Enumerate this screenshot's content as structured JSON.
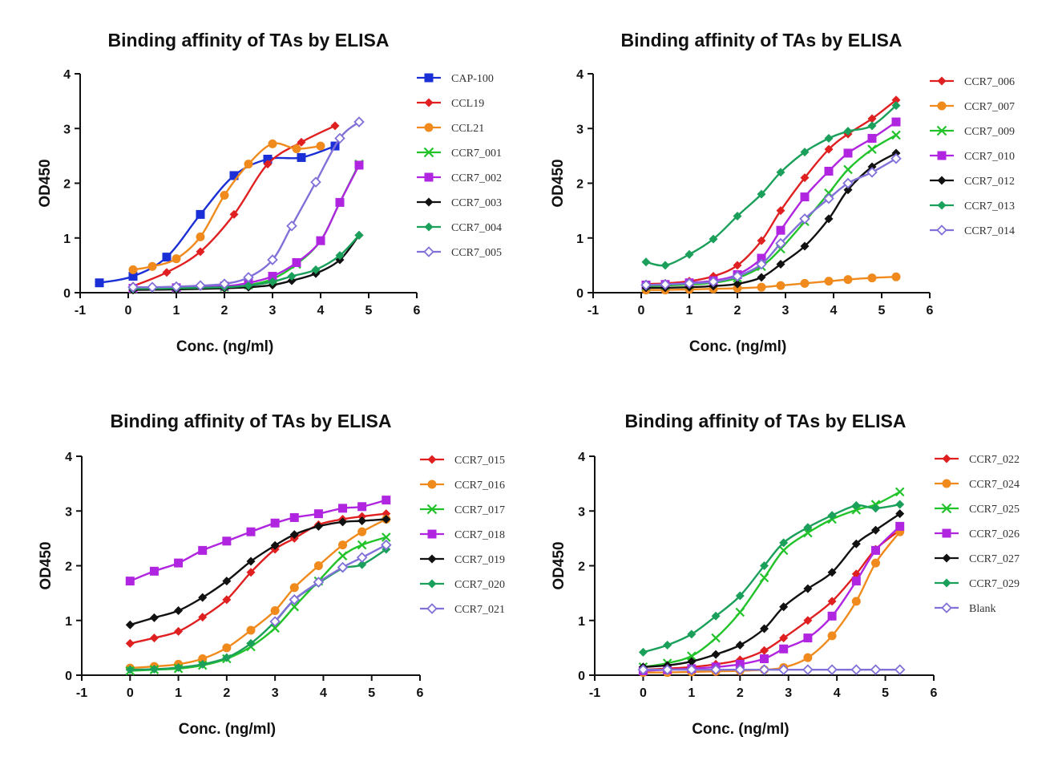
{
  "chart_data": [
    {
      "type": "line",
      "title": "Binding affinity of TAs by ELISA",
      "xlabel": "Conc. (ng/ml)",
      "ylabel": "OD450",
      "xlim": [
        -1,
        6
      ],
      "ylim": [
        0,
        4
      ],
      "xticks": [
        "-1",
        "0",
        "1",
        "2",
        "3",
        "4",
        "5",
        "6"
      ],
      "yticks": [
        "0",
        "1",
        "2",
        "3",
        "4"
      ],
      "legend_position": "right",
      "series": [
        {
          "name": "CAP-100",
          "color": "#1a2fd6",
          "marker": "square",
          "x": [
            -0.6,
            0.1,
            0.8,
            1.5,
            2.2,
            2.9,
            3.6,
            4.3
          ],
          "y": [
            0.18,
            0.3,
            0.65,
            1.43,
            2.14,
            2.44,
            2.47,
            2.68
          ]
        },
        {
          "name": "CCL19",
          "color": "#e02020",
          "marker": "diamond",
          "x": [
            0.1,
            0.8,
            1.5,
            2.2,
            2.9,
            3.6,
            4.3
          ],
          "y": [
            0.12,
            0.37,
            0.75,
            1.43,
            2.35,
            2.75,
            3.05
          ]
        },
        {
          "name": "CCL21",
          "color": "#f08a1c",
          "marker": "circle",
          "x": [
            0.1,
            0.5,
            1.0,
            1.5,
            2.0,
            2.5,
            3.0,
            3.5,
            4.0
          ],
          "y": [
            0.42,
            0.48,
            0.62,
            1.02,
            1.78,
            2.35,
            2.72,
            2.63,
            2.68
          ]
        },
        {
          "name": "CCR7_001",
          "color": "#22c32a",
          "marker": "x",
          "x": [
            0.1,
            1.0,
            2.0,
            2.5,
            3.0,
            3.5,
            4.0,
            4.4,
            4.8
          ],
          "y": [
            0.07,
            0.08,
            0.1,
            0.14,
            0.25,
            0.52,
            0.95,
            1.65,
            2.35
          ]
        },
        {
          "name": "CCR7_002",
          "color": "#b026e0",
          "marker": "square",
          "x": [
            0.1,
            1.0,
            2.0,
            2.5,
            3.0,
            3.5,
            4.0,
            4.4,
            4.8
          ],
          "y": [
            0.08,
            0.09,
            0.12,
            0.18,
            0.3,
            0.55,
            0.95,
            1.65,
            2.33
          ]
        },
        {
          "name": "CCR7_003",
          "color": "#111111",
          "marker": "diamond",
          "x": [
            0.1,
            1.0,
            2.0,
            2.5,
            3.0,
            3.4,
            3.9,
            4.4,
            4.8
          ],
          "y": [
            0.05,
            0.06,
            0.08,
            0.1,
            0.14,
            0.22,
            0.35,
            0.6,
            1.05
          ]
        },
        {
          "name": "CCR7_004",
          "color": "#1aa05a",
          "marker": "diamond",
          "x": [
            0.1,
            1.0,
            2.0,
            2.5,
            3.0,
            3.4,
            3.9,
            4.4,
            4.8
          ],
          "y": [
            0.07,
            0.08,
            0.1,
            0.13,
            0.2,
            0.3,
            0.42,
            0.68,
            1.05
          ]
        },
        {
          "name": "CCR7_005",
          "color": "#8070d8",
          "marker": "diamond-open",
          "x": [
            0.1,
            0.5,
            1.0,
            1.5,
            2.0,
            2.5,
            3.0,
            3.4,
            3.9,
            4.4,
            4.8
          ],
          "y": [
            0.1,
            0.1,
            0.11,
            0.13,
            0.16,
            0.28,
            0.6,
            1.22,
            2.02,
            2.82,
            3.12
          ]
        }
      ]
    },
    {
      "type": "line",
      "title": "Binding affinity of TAs by ELISA",
      "xlabel": "Conc. (ng/ml)",
      "ylabel": "OD450",
      "xlim": [
        -1,
        6
      ],
      "ylim": [
        0,
        4
      ],
      "xticks": [
        "-1",
        "0",
        "1",
        "2",
        "3",
        "4",
        "5",
        "6"
      ],
      "yticks": [
        "0",
        "1",
        "2",
        "3",
        "4"
      ],
      "legend_position": "right",
      "series": [
        {
          "name": "CCR7_006",
          "color": "#e02020",
          "marker": "diamond",
          "x": [
            0.1,
            0.5,
            1.0,
            1.5,
            2.0,
            2.5,
            2.9,
            3.4,
            3.9,
            4.3,
            4.8,
            5.3
          ],
          "y": [
            0.16,
            0.17,
            0.21,
            0.3,
            0.5,
            0.95,
            1.5,
            2.1,
            2.62,
            2.9,
            3.18,
            3.52
          ]
        },
        {
          "name": "CCR7_007",
          "color": "#f08a1c",
          "marker": "circle",
          "x": [
            0.1,
            0.5,
            1.0,
            1.5,
            2.0,
            2.5,
            2.9,
            3.4,
            3.9,
            4.3,
            4.8,
            5.3
          ],
          "y": [
            0.05,
            0.05,
            0.06,
            0.07,
            0.08,
            0.1,
            0.13,
            0.17,
            0.21,
            0.24,
            0.27,
            0.29
          ]
        },
        {
          "name": "CCR7_009",
          "color": "#22c32a",
          "marker": "x",
          "x": [
            0.1,
            0.5,
            1.0,
            1.5,
            2.0,
            2.5,
            2.9,
            3.4,
            3.9,
            4.3,
            4.8,
            5.3
          ],
          "y": [
            0.12,
            0.13,
            0.15,
            0.18,
            0.27,
            0.48,
            0.8,
            1.3,
            1.82,
            2.25,
            2.62,
            2.88
          ]
        },
        {
          "name": "CCR7_010",
          "color": "#b026e0",
          "marker": "square",
          "x": [
            0.1,
            0.5,
            1.0,
            1.5,
            2.0,
            2.5,
            2.9,
            3.4,
            3.9,
            4.3,
            4.8,
            5.3
          ],
          "y": [
            0.14,
            0.15,
            0.18,
            0.22,
            0.33,
            0.63,
            1.14,
            1.75,
            2.22,
            2.55,
            2.82,
            3.12
          ]
        },
        {
          "name": "CCR7_012",
          "color": "#111111",
          "marker": "diamond",
          "x": [
            0.1,
            0.5,
            1.0,
            1.5,
            2.0,
            2.5,
            2.9,
            3.4,
            3.9,
            4.3,
            4.8,
            5.3
          ],
          "y": [
            0.09,
            0.09,
            0.1,
            0.12,
            0.16,
            0.28,
            0.52,
            0.85,
            1.35,
            1.88,
            2.3,
            2.55
          ]
        },
        {
          "name": "CCR7_013",
          "color": "#1aa05a",
          "marker": "diamond",
          "x": [
            0.1,
            0.5,
            1.0,
            1.5,
            2.0,
            2.5,
            2.9,
            3.4,
            3.9,
            4.3,
            4.8,
            5.3
          ],
          "y": [
            0.56,
            0.5,
            0.7,
            0.98,
            1.4,
            1.8,
            2.2,
            2.57,
            2.82,
            2.95,
            3.05,
            3.42
          ]
        },
        {
          "name": "CCR7_014",
          "color": "#8070d8",
          "marker": "diamond-open",
          "x": [
            0.1,
            0.5,
            1.0,
            1.5,
            2.0,
            2.5,
            2.9,
            3.4,
            3.9,
            4.3,
            4.8,
            5.3
          ],
          "y": [
            0.14,
            0.15,
            0.17,
            0.2,
            0.3,
            0.52,
            0.9,
            1.35,
            1.72,
            2.0,
            2.2,
            2.45
          ]
        }
      ]
    },
    {
      "type": "line",
      "title": "Binding affinity of TAs by ELISA",
      "xlabel": "Conc. (ng/ml)",
      "ylabel": "OD450",
      "xlim": [
        -1,
        6
      ],
      "ylim": [
        0,
        4
      ],
      "xticks": [
        "-1",
        "0",
        "1",
        "2",
        "3",
        "4",
        "5",
        "6"
      ],
      "yticks": [
        "0",
        "1",
        "2",
        "3",
        "4"
      ],
      "legend_position": "right",
      "series": [
        {
          "name": "CCR7_015",
          "color": "#e02020",
          "marker": "diamond",
          "x": [
            0.0,
            0.5,
            1.0,
            1.5,
            2.0,
            2.5,
            3.0,
            3.4,
            3.9,
            4.4,
            4.8,
            5.3
          ],
          "y": [
            0.58,
            0.68,
            0.8,
            1.06,
            1.38,
            1.88,
            2.3,
            2.5,
            2.75,
            2.85,
            2.9,
            2.95
          ]
        },
        {
          "name": "CCR7_016",
          "color": "#f08a1c",
          "marker": "circle",
          "x": [
            0.0,
            0.5,
            1.0,
            1.5,
            2.0,
            2.5,
            3.0,
            3.4,
            3.9,
            4.4,
            4.8,
            5.3
          ],
          "y": [
            0.13,
            0.16,
            0.2,
            0.3,
            0.5,
            0.82,
            1.18,
            1.6,
            2.0,
            2.38,
            2.62,
            2.85
          ]
        },
        {
          "name": "CCR7_017",
          "color": "#22c32a",
          "marker": "x",
          "x": [
            0.0,
            0.5,
            1.0,
            1.5,
            2.0,
            2.5,
            3.0,
            3.4,
            3.9,
            4.4,
            4.8,
            5.3
          ],
          "y": [
            0.08,
            0.1,
            0.12,
            0.18,
            0.3,
            0.52,
            0.86,
            1.25,
            1.72,
            2.18,
            2.38,
            2.52
          ]
        },
        {
          "name": "CCR7_018",
          "color": "#b026e0",
          "marker": "square",
          "x": [
            0.0,
            0.5,
            1.0,
            1.5,
            2.0,
            2.5,
            3.0,
            3.4,
            3.9,
            4.4,
            4.8,
            5.3
          ],
          "y": [
            1.72,
            1.9,
            2.05,
            2.28,
            2.45,
            2.62,
            2.78,
            2.88,
            2.95,
            3.05,
            3.08,
            3.2
          ]
        },
        {
          "name": "CCR7_019",
          "color": "#111111",
          "marker": "diamond",
          "x": [
            0.0,
            0.5,
            1.0,
            1.5,
            2.0,
            2.5,
            3.0,
            3.4,
            3.9,
            4.4,
            4.8,
            5.3
          ],
          "y": [
            0.92,
            1.05,
            1.18,
            1.42,
            1.72,
            2.08,
            2.37,
            2.57,
            2.72,
            2.8,
            2.82,
            2.85
          ]
        },
        {
          "name": "CCR7_020",
          "color": "#1aa05a",
          "marker": "diamond",
          "x": [
            0.0,
            0.5,
            1.0,
            1.5,
            2.0,
            2.5,
            3.0,
            3.4,
            3.9,
            4.4,
            4.8,
            5.3
          ],
          "y": [
            0.1,
            0.11,
            0.14,
            0.2,
            0.32,
            0.58,
            0.98,
            1.38,
            1.68,
            1.95,
            2.02,
            2.3
          ]
        },
        {
          "name": "CCR7_021",
          "color": "#8070d8",
          "marker": "diamond-open",
          "x": [
            3.0,
            3.4,
            3.9,
            4.4,
            4.8,
            5.3
          ],
          "y": [
            0.98,
            1.38,
            1.7,
            1.97,
            2.15,
            2.38
          ]
        }
      ]
    },
    {
      "type": "line",
      "title": "Binding affinity of TAs by ELISA",
      "xlabel": "Conc. (ng/ml)",
      "ylabel": "OD450",
      "xlim": [
        -1,
        6
      ],
      "ylim": [
        0,
        4
      ],
      "xticks": [
        "-1",
        "0",
        "1",
        "2",
        "3",
        "4",
        "5",
        "6"
      ],
      "yticks": [
        "0",
        "1",
        "2",
        "3",
        "4"
      ],
      "legend_position": "right",
      "series": [
        {
          "name": "CCR7_022",
          "color": "#e02020",
          "marker": "diamond",
          "x": [
            0.0,
            0.5,
            1.0,
            1.5,
            2.0,
            2.5,
            2.9,
            3.4,
            3.9,
            4.4,
            4.8,
            5.3
          ],
          "y": [
            0.1,
            0.12,
            0.15,
            0.2,
            0.28,
            0.45,
            0.68,
            1.0,
            1.35,
            1.85,
            2.3,
            2.65
          ]
        },
        {
          "name": "CCR7_024",
          "color": "#f08a1c",
          "marker": "circle",
          "x": [
            0.0,
            0.5,
            1.0,
            1.5,
            2.0,
            2.5,
            2.9,
            3.4,
            3.9,
            4.4,
            4.8,
            5.3
          ],
          "y": [
            0.05,
            0.05,
            0.06,
            0.07,
            0.08,
            0.1,
            0.14,
            0.32,
            0.72,
            1.35,
            2.05,
            2.62
          ]
        },
        {
          "name": "CCR7_025",
          "color": "#22c32a",
          "marker": "x",
          "x": [
            0.0,
            0.5,
            1.0,
            1.5,
            2.0,
            2.5,
            2.9,
            3.4,
            3.9,
            4.4,
            4.8,
            5.3
          ],
          "y": [
            0.15,
            0.22,
            0.35,
            0.68,
            1.15,
            1.78,
            2.28,
            2.6,
            2.85,
            3.02,
            3.12,
            3.35
          ]
        },
        {
          "name": "CCR7_026",
          "color": "#b026e0",
          "marker": "square",
          "x": [
            0.0,
            0.5,
            1.0,
            1.5,
            2.0,
            2.5,
            2.9,
            3.4,
            3.9,
            4.4,
            4.8,
            5.3
          ],
          "y": [
            0.08,
            0.1,
            0.12,
            0.15,
            0.2,
            0.3,
            0.48,
            0.68,
            1.08,
            1.72,
            2.28,
            2.72
          ]
        },
        {
          "name": "CCR7_027",
          "color": "#111111",
          "marker": "diamond",
          "x": [
            0.0,
            0.5,
            1.0,
            1.5,
            2.0,
            2.5,
            2.9,
            3.4,
            3.9,
            4.4,
            4.8,
            5.3
          ],
          "y": [
            0.15,
            0.18,
            0.25,
            0.38,
            0.55,
            0.85,
            1.25,
            1.58,
            1.88,
            2.4,
            2.65,
            2.95
          ]
        },
        {
          "name": "CCR7_029",
          "color": "#1aa05a",
          "marker": "diamond",
          "x": [
            0.0,
            0.5,
            1.0,
            1.5,
            2.0,
            2.5,
            2.9,
            3.4,
            3.9,
            4.4,
            4.8,
            5.3
          ],
          "y": [
            0.42,
            0.55,
            0.75,
            1.08,
            1.45,
            2.0,
            2.42,
            2.7,
            2.92,
            3.1,
            3.05,
            3.12
          ]
        },
        {
          "name": "Blank",
          "color": "#8070d8",
          "marker": "diamond-open",
          "x": [
            0.0,
            0.5,
            1.0,
            1.5,
            2.0,
            2.5,
            2.9,
            3.4,
            3.9,
            4.4,
            4.8,
            5.3
          ],
          "y": [
            0.1,
            0.1,
            0.1,
            0.1,
            0.1,
            0.1,
            0.1,
            0.1,
            0.1,
            0.1,
            0.1,
            0.1
          ]
        }
      ]
    }
  ]
}
